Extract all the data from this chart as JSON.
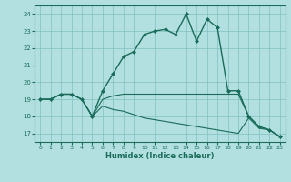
{
  "xlabel": "Humidex (Indice chaleur)",
  "bg_color": "#b2e0e0",
  "line_color": "#1a6b5a",
  "grid_color": "#80bfbf",
  "xlim": [
    -0.5,
    23.5
  ],
  "ylim": [
    16.5,
    24.5
  ],
  "xticks": [
    0,
    1,
    2,
    3,
    4,
    5,
    6,
    7,
    8,
    9,
    10,
    11,
    12,
    13,
    14,
    15,
    16,
    17,
    18,
    19,
    20,
    21,
    22,
    23
  ],
  "yticks": [
    17,
    18,
    19,
    20,
    21,
    22,
    23,
    24
  ],
  "lines": [
    {
      "x": [
        0,
        1,
        2,
        3,
        4,
        5,
        6,
        7,
        8,
        9,
        10,
        11,
        12,
        13,
        14,
        15,
        16,
        17,
        18,
        19,
        20,
        21,
        22,
        23
      ],
      "y": [
        19.0,
        19.0,
        19.3,
        19.3,
        19.0,
        18.0,
        19.5,
        20.5,
        21.5,
        21.8,
        22.8,
        23.0,
        23.1,
        22.8,
        24.0,
        22.4,
        23.7,
        23.2,
        19.5,
        19.5,
        18.0,
        17.4,
        17.2,
        16.8
      ],
      "marker": "D",
      "markersize": 2.0,
      "linewidth": 1.0
    },
    {
      "x": [
        0,
        1,
        2,
        3,
        4,
        5,
        6,
        7,
        8,
        9,
        10,
        11,
        12,
        13,
        14,
        15,
        16,
        17,
        18,
        19,
        20,
        21,
        22,
        23
      ],
      "y": [
        19.0,
        19.0,
        19.3,
        19.3,
        19.0,
        18.0,
        19.0,
        19.2,
        19.3,
        19.3,
        19.3,
        19.3,
        19.3,
        19.3,
        19.3,
        19.3,
        19.3,
        19.3,
        19.3,
        19.3,
        18.0,
        17.4,
        17.2,
        16.8
      ],
      "marker": null,
      "linewidth": 0.8
    },
    {
      "x": [
        0,
        1,
        2,
        3,
        4,
        5,
        6,
        7,
        8,
        9,
        10,
        11,
        12,
        13,
        14,
        15,
        16,
        17,
        18,
        19,
        20,
        21,
        22,
        23
      ],
      "y": [
        19.0,
        19.0,
        19.3,
        19.3,
        19.0,
        18.0,
        18.6,
        18.4,
        18.3,
        18.1,
        17.9,
        17.8,
        17.7,
        17.6,
        17.5,
        17.4,
        17.3,
        17.2,
        17.1,
        17.0,
        17.9,
        17.3,
        17.2,
        16.8
      ],
      "marker": null,
      "linewidth": 0.8
    }
  ]
}
